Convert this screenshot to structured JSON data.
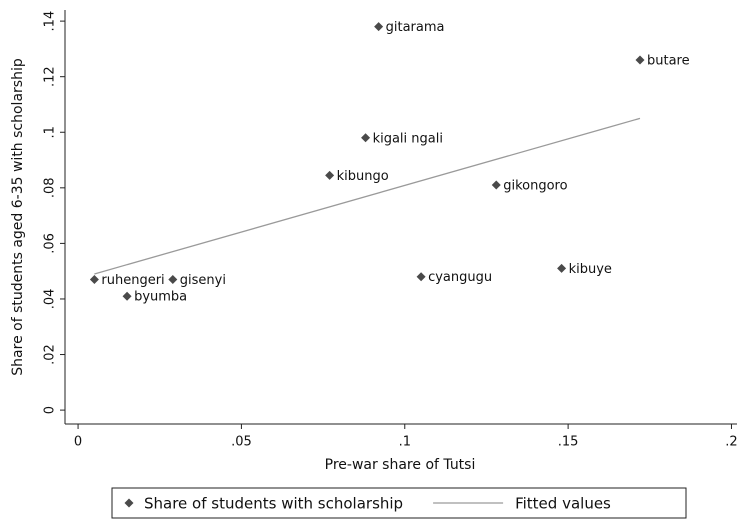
{
  "chart_data": {
    "type": "scatter",
    "x_label": "Pre-war share of Tutsi",
    "y_label": "Share of students aged 6-35 with scholarship",
    "xlim": [
      -0.004,
      0.202
    ],
    "ylim": [
      -0.005,
      0.144
    ],
    "xticks": [
      0,
      {
        "value": 0.05,
        "label": ".05"
      },
      {
        "value": 0.1,
        "label": ".1"
      },
      {
        "value": 0.15,
        "label": ".15"
      },
      {
        "value": 0.2,
        "label": ".2"
      }
    ],
    "yticks": [
      0,
      {
        "value": 0.02,
        "label": ".02"
      },
      {
        "value": 0.04,
        "label": ".04"
      },
      {
        "value": 0.06,
        "label": ".06"
      },
      {
        "value": 0.08,
        "label": ".08"
      },
      {
        "value": 0.1,
        "label": ".1"
      },
      {
        "value": 0.12,
        "label": ".12"
      },
      {
        "value": 0.14,
        "label": ".14"
      }
    ],
    "series": [
      {
        "name": "Share of students with scholarship",
        "color": "#4a4a4a",
        "kind": "points",
        "x": [
          0.092,
          0.172,
          0.088,
          0.077,
          0.128,
          0.005,
          0.029,
          0.015,
          0.105,
          0.148
        ],
        "values": [
          0.138,
          0.126,
          0.098,
          0.0845,
          0.081,
          0.047,
          0.047,
          0.041,
          0.048,
          0.051
        ],
        "labels": [
          "gitarama",
          "butare",
          "kigali ngali",
          "kibungo",
          "gikongoro",
          "ruhengeri",
          "gisenyi",
          "byumba",
          "cyangugu",
          "kibuye"
        ]
      },
      {
        "name": "Fitted values",
        "color": "#9a9a9a",
        "kind": "line",
        "x": [
          0.005,
          0.172
        ],
        "values": [
          0.049,
          0.105
        ]
      }
    ]
  }
}
